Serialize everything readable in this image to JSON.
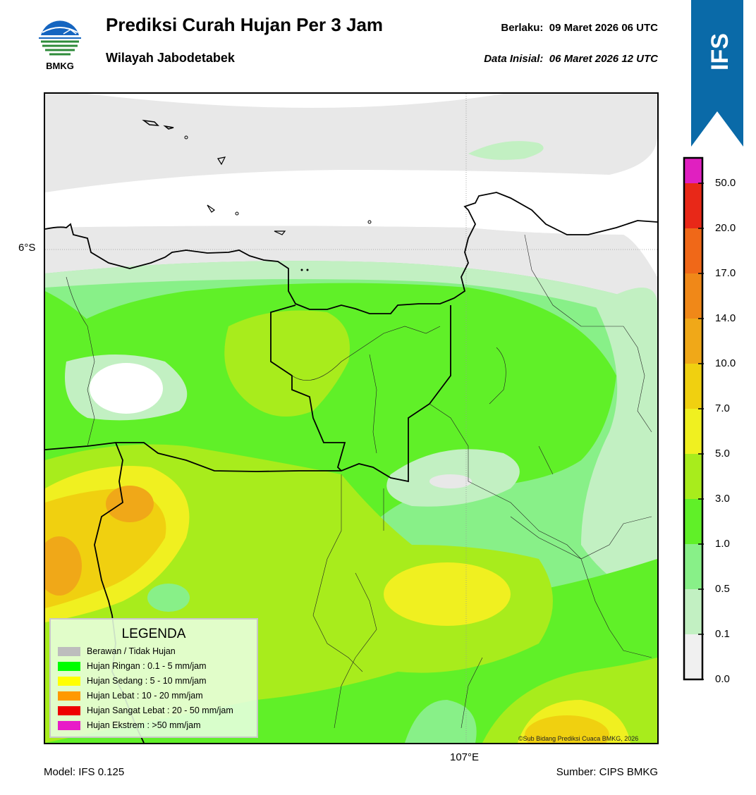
{
  "header": {
    "title": "Prediksi Curah Hujan Per 3 Jam",
    "subtitle": "Wilayah Jabodetabek",
    "valid_label": "Berlaku:",
    "valid_value": "09 Maret 2026 06 UTC",
    "init_label": "Data Inisial:",
    "init_value": "06 Maret 2026 12 UTC"
  },
  "logo": {
    "text": "BMKG",
    "icon": "bmkg-logo"
  },
  "badge": {
    "text": "IFS",
    "color": "#0a6aa8"
  },
  "map": {
    "lat_label": "6°S",
    "lon_label": "107°E",
    "copyright": "©Sub Bidang Prediksi Cuaca BMKG, 2026"
  },
  "footer": {
    "model": "Model: IFS 0.125",
    "source": "Sumber: CIPS BMKG"
  },
  "colorbar": {
    "ticks": [
      "0.0",
      "0.1",
      "0.5",
      "1.0",
      "3.0",
      "5.0",
      "7.0",
      "10.0",
      "14.0",
      "17.0",
      "20.0",
      "50.0"
    ],
    "colors": [
      "#f0f0f0",
      "#c2f0c2",
      "#88f088",
      "#60f028",
      "#a8ec1c",
      "#f0f020",
      "#f0d010",
      "#f0a818",
      "#f08818",
      "#f06818",
      "#e82818",
      "#e020c0"
    ]
  },
  "legend": {
    "title": "LEGENDA",
    "items": [
      {
        "label": "Berawan / Tidak Hujan",
        "color": "#bdbdbd"
      },
      {
        "label": "Hujan Ringan : 0.1 - 5 mm/jam",
        "color": "#00ff00"
      },
      {
        "label": "Hujan Sedang : 5 - 10 mm/jam",
        "color": "#ffff00"
      },
      {
        "label": "Hujan Lebat : 10 - 20 mm/jam",
        "color": "#ff9900"
      },
      {
        "label": "Hujan Sangat Lebat : 20 - 50 mm/jam",
        "color": "#ee0000"
      },
      {
        "label": "Hujan Ekstrem : >50 mm/jam",
        "color": "#e81cc8"
      }
    ]
  }
}
